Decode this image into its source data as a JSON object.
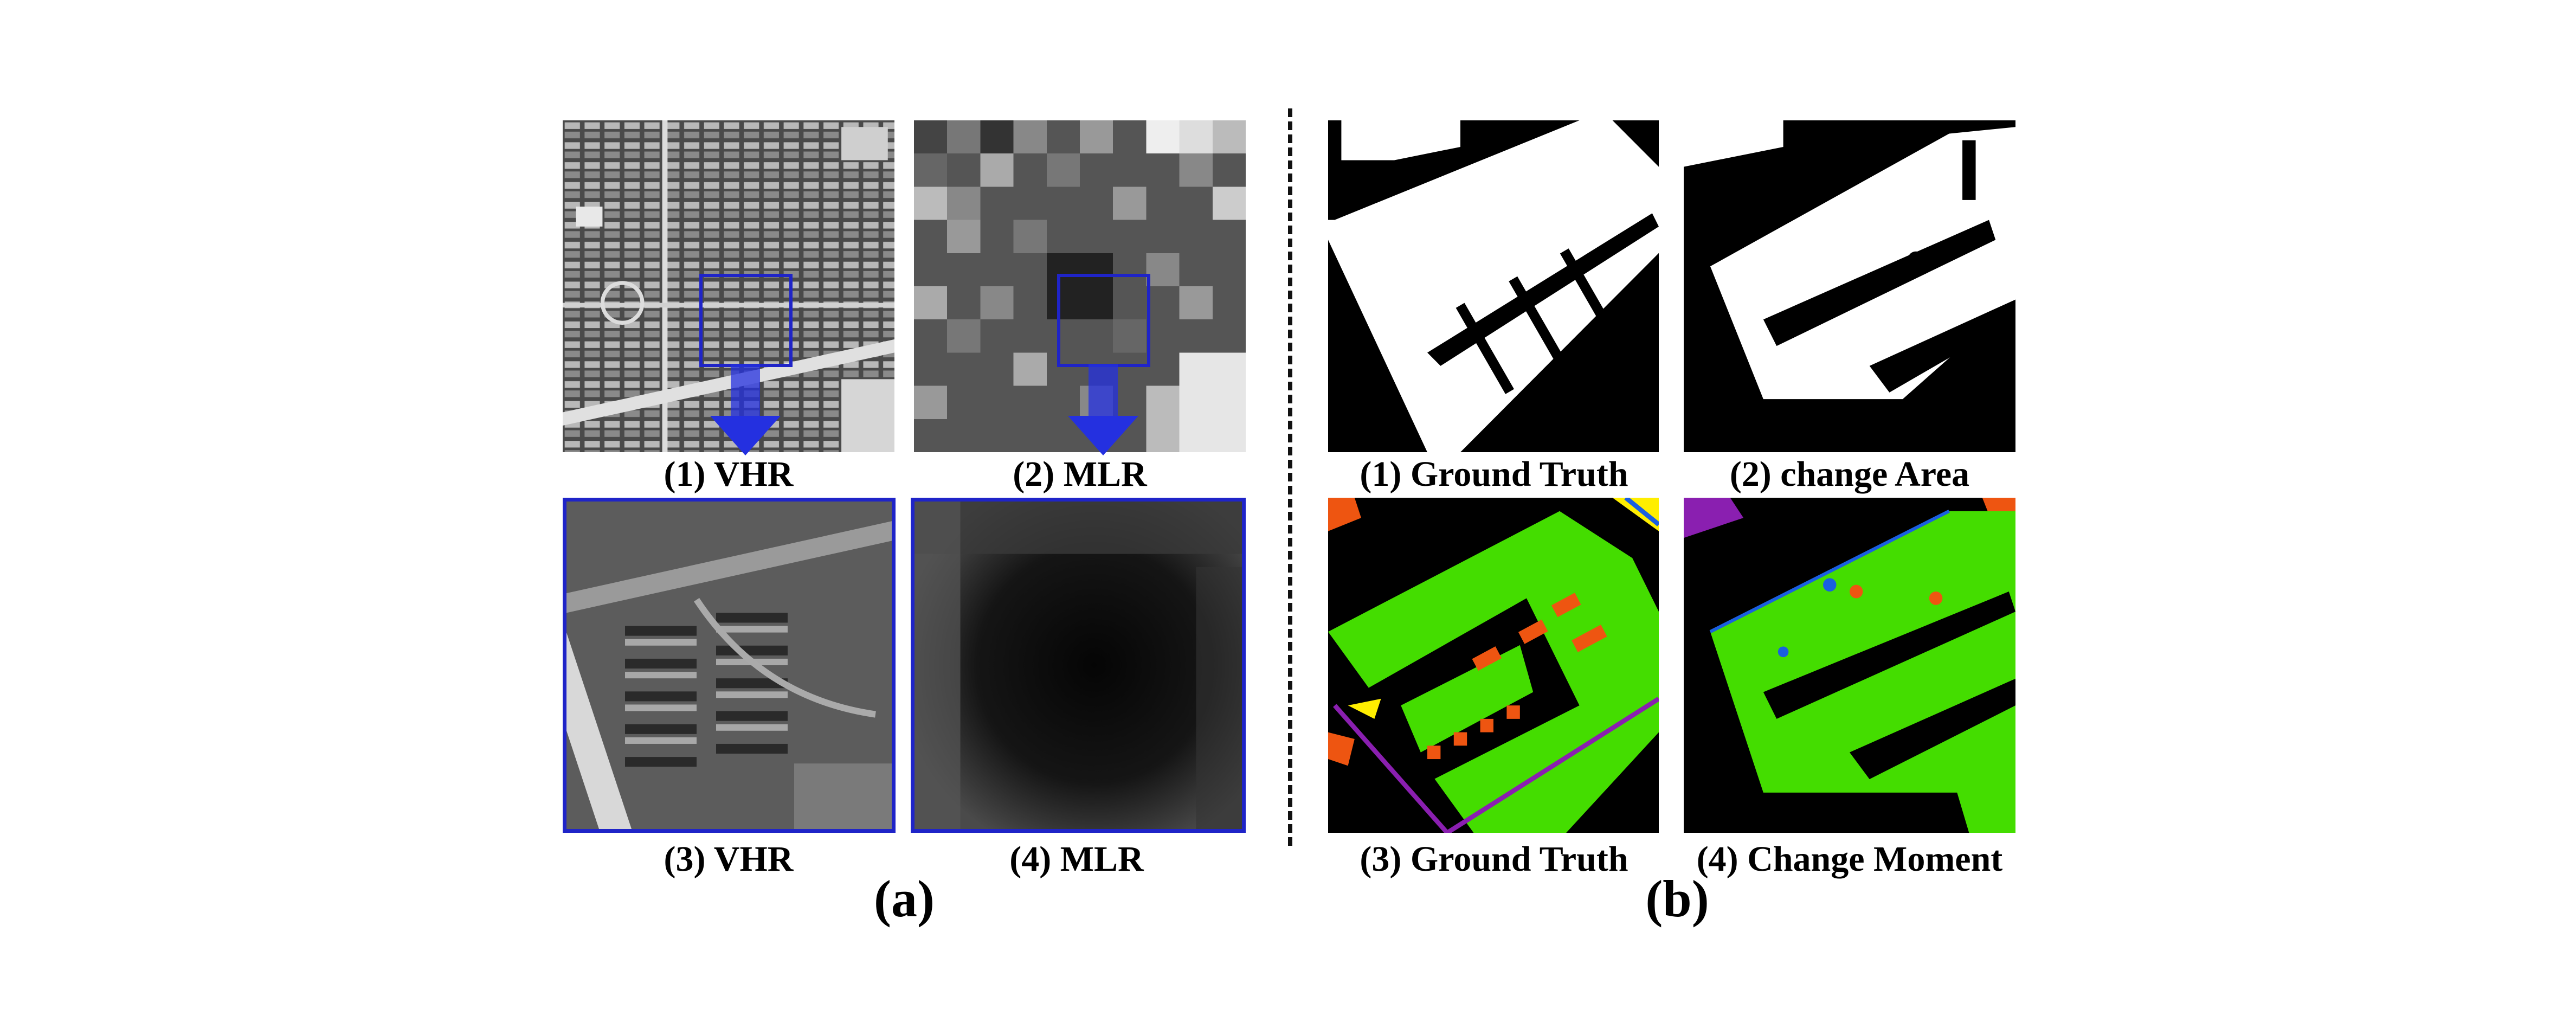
{
  "figure": {
    "part_a": {
      "label": "(a)",
      "panels": [
        {
          "caption": "(1) VHR"
        },
        {
          "caption": "(2) MLR"
        },
        {
          "caption": "(3) VHR"
        },
        {
          "caption": "(4) MLR"
        }
      ]
    },
    "part_b": {
      "label": "(b)",
      "panels": [
        {
          "caption": "(1) Ground Truth"
        },
        {
          "caption": "(2) change Area"
        },
        {
          "caption": "(3) Ground Truth"
        },
        {
          "caption": "(4) Change Moment"
        }
      ]
    }
  },
  "colors": {
    "highlight_box": "#1f24c8",
    "arrow": "#2430e0",
    "class_green": "#44dd00",
    "class_orange": "#ee5511",
    "class_purple": "#8a1fb0",
    "class_blue": "#1a5fe0",
    "class_yellow": "#ffee00"
  }
}
